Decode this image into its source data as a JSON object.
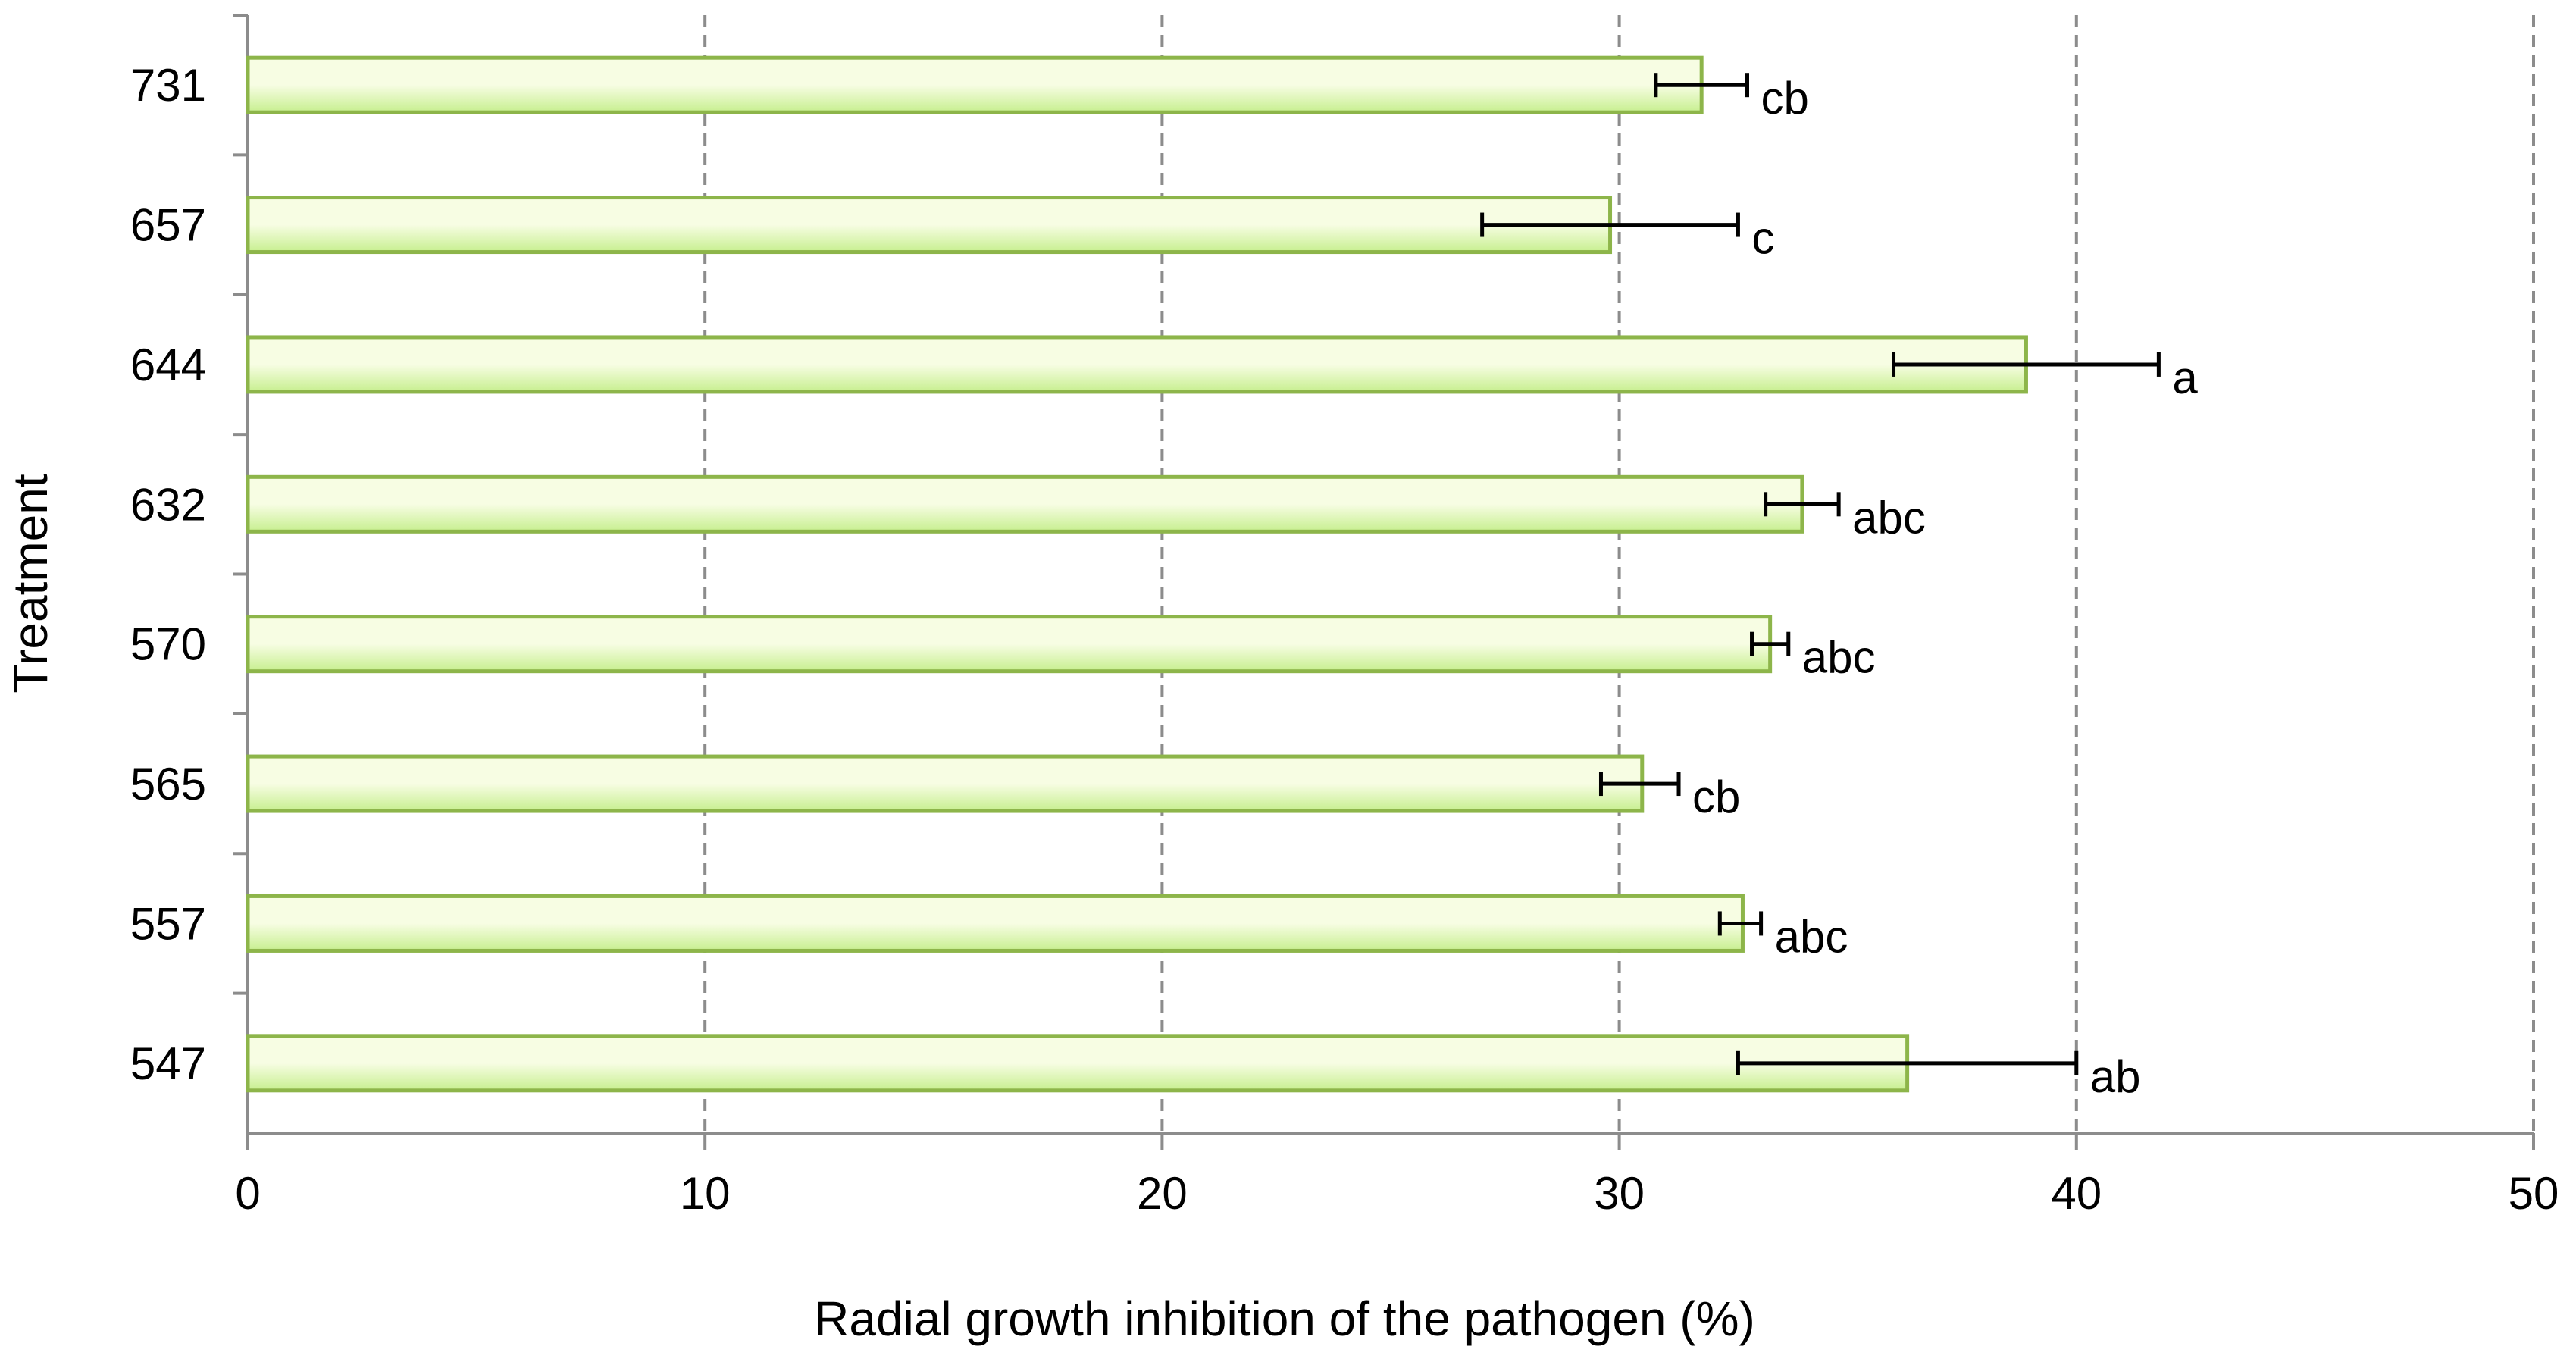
{
  "chart_data": {
    "type": "bar",
    "orientation": "horizontal",
    "title": "",
    "xlabel": "Radial growth inhibition of the pathogen (%)",
    "ylabel": "Treatment",
    "xlim": [
      0,
      50
    ],
    "xticks": [
      0,
      10,
      20,
      30,
      40,
      50
    ],
    "grid": "vertical-dashed",
    "categories": [
      "731",
      "657",
      "644",
      "632",
      "570",
      "565",
      "557",
      "547"
    ],
    "values": [
      31.8,
      29.8,
      38.9,
      34.0,
      33.3,
      30.5,
      32.7,
      36.3
    ],
    "error_low": [
      30.8,
      27.0,
      36.0,
      33.2,
      32.9,
      29.6,
      32.2,
      32.6
    ],
    "error_high": [
      32.8,
      32.6,
      41.8,
      34.8,
      33.7,
      31.3,
      33.1,
      40.0
    ],
    "significance": [
      "cb",
      "c",
      "a",
      "abc",
      "abc",
      "cb",
      "abc",
      "ab"
    ],
    "colors": {
      "bar_fill_light": "#f7fde3",
      "bar_fill_dark": "#c7ef8f",
      "bar_stroke": "#8db54a",
      "grid": "#8c8c8c",
      "axis": "#8c8c8c",
      "error_bar": "#000000"
    }
  }
}
